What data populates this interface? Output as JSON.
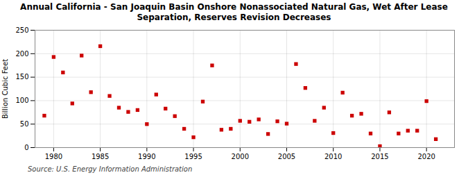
{
  "chart_data": {
    "type": "scatter",
    "title": "Annual California - San Joaquin Basin Onshore Nonassociated Natural Gas, Wet After Lease\nSeparation, Reserves Revision Decreases",
    "ylabel": "Billion Cubic Feet",
    "source": "Source: U.S. Energy Information Administration",
    "x": [
      1979,
      1980,
      1981,
      1982,
      1983,
      1984,
      1985,
      1986,
      1987,
      1988,
      1989,
      1990,
      1991,
      1992,
      1993,
      1994,
      1995,
      1996,
      1997,
      1998,
      1999,
      2000,
      2001,
      2002,
      2003,
      2004,
      2005,
      2006,
      2007,
      2008,
      2009,
      2010,
      2011,
      2012,
      2013,
      2014,
      2015,
      2016,
      2017,
      2018,
      2019,
      2020,
      2021
    ],
    "values": [
      68,
      193,
      160,
      94,
      196,
      118,
      216,
      110,
      85,
      76,
      80,
      50,
      113,
      83,
      67,
      40,
      22,
      98,
      175,
      38,
      40,
      57,
      55,
      60,
      29,
      56,
      51,
      178,
      127,
      57,
      85,
      31,
      117,
      68,
      72,
      30,
      3,
      75,
      30,
      36,
      36,
      99,
      18
    ],
    "color": "#cc0000",
    "marker": "square",
    "xlim": [
      1978,
      2023
    ],
    "ylim": [
      0,
      250
    ],
    "xticks": [
      1980,
      1985,
      1990,
      1995,
      2000,
      2005,
      2010,
      2015,
      2020
    ],
    "yticks": [
      0,
      50,
      100,
      150,
      200,
      250
    ],
    "grid": true
  }
}
